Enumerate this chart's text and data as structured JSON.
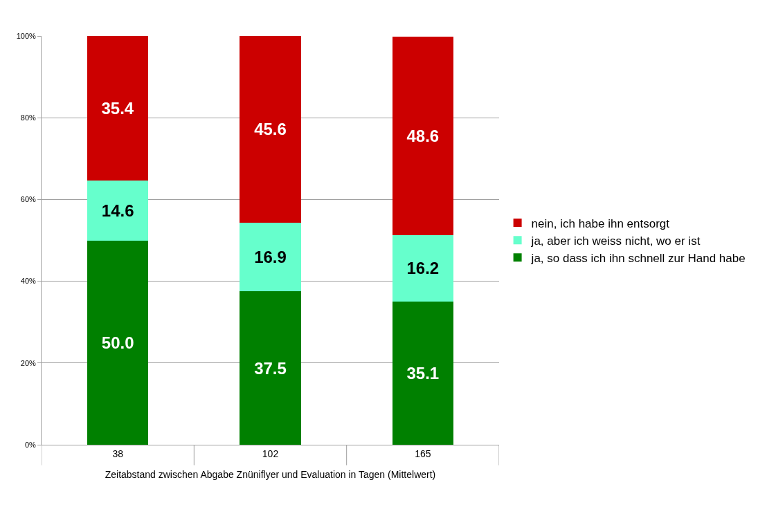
{
  "chart_data": {
    "type": "bar",
    "stacked": true,
    "xlabel": "Zeitabstand zwischen Abgabe Znüniflyer und Evaluation in Tagen (Mittelwert)",
    "categories": [
      "38",
      "102",
      "165"
    ],
    "series": [
      {
        "name": "ja, so dass ich ihn schnell zur Hand habe",
        "color": "#008000",
        "values": [
          50.0,
          37.5,
          35.1
        ],
        "value_labels": [
          "50.0",
          "37.5",
          "35.1"
        ]
      },
      {
        "name": "ja, aber ich weiss nicht, wo er ist",
        "color": "#66ffcc",
        "values": [
          14.6,
          16.9,
          16.2
        ],
        "value_labels": [
          "14.6",
          "16.9",
          "16.2"
        ]
      },
      {
        "name": "nein, ich habe ihn entsorgt",
        "color": "#cc0000",
        "values": [
          35.4,
          45.6,
          48.6
        ],
        "value_labels": [
          "35.4",
          "45.6",
          "48.6"
        ]
      }
    ],
    "ylim": [
      0,
      100
    ],
    "yticks": [
      {
        "value": 0,
        "label": "0%"
      },
      {
        "value": 20,
        "label": "20%"
      },
      {
        "value": 40,
        "label": "40%"
      },
      {
        "value": 60,
        "label": "60%"
      },
      {
        "value": 80,
        "label": "80%"
      },
      {
        "value": 100,
        "label": "100%"
      }
    ],
    "grid": "y",
    "legend": "right"
  }
}
